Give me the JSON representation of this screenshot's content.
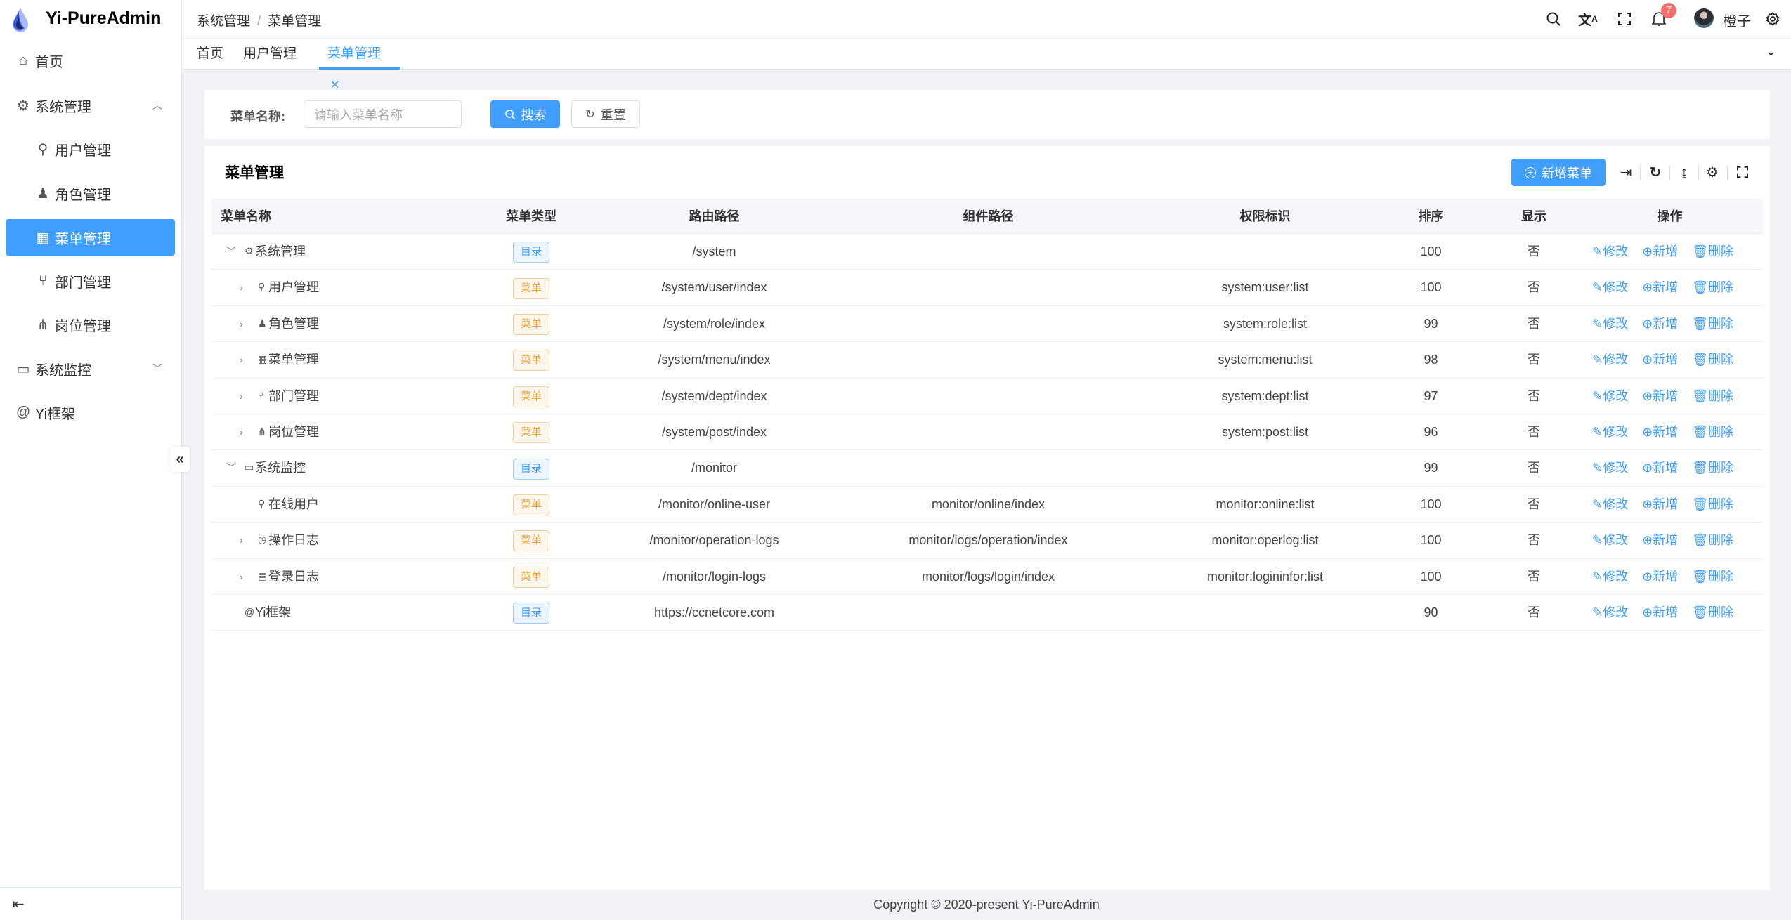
{
  "app": {
    "title": "Yi-PureAdmin",
    "brand_color": "#409eff"
  },
  "sidebar": {
    "items": [
      {
        "label": "首页",
        "icon": "home-icon",
        "level": 0
      },
      {
        "label": "系统管理",
        "icon": "gear-icon",
        "level": 0,
        "expanded": true
      },
      {
        "label": "用户管理",
        "icon": "user-icon",
        "level": 1
      },
      {
        "label": "角色管理",
        "icon": "role-icon",
        "level": 1
      },
      {
        "label": "菜单管理",
        "icon": "grid-icon",
        "level": 1,
        "active": true
      },
      {
        "label": "部门管理",
        "icon": "branch-icon",
        "level": 1
      },
      {
        "label": "岗位管理",
        "icon": "network-icon",
        "level": 1
      },
      {
        "label": "系统监控",
        "icon": "monitor-icon",
        "level": 0,
        "expanded": false
      },
      {
        "label": "Yi框架",
        "icon": "at-icon",
        "level": 0
      }
    ]
  },
  "header": {
    "breadcrumb": [
      "系统管理",
      "菜单管理"
    ],
    "notification_count": "7",
    "username": "橙子"
  },
  "tabs": [
    {
      "label": "首页"
    },
    {
      "label": "用户管理"
    },
    {
      "label": "菜单管理",
      "active": true
    }
  ],
  "search": {
    "label": "菜单名称:",
    "placeholder": "请输入菜单名称",
    "search_label": "搜索",
    "reset_label": "重置"
  },
  "table": {
    "title": "菜单管理",
    "add_label": "新增菜单",
    "columns": [
      "菜单名称",
      "菜单类型",
      "路由路径",
      "组件路径",
      "权限标识",
      "排序",
      "显示",
      "操作"
    ],
    "actions": {
      "edit": "修改",
      "add": "新增",
      "delete": "删除"
    },
    "rows": [
      {
        "name": "系统管理",
        "icon": "gear-icon",
        "level": 0,
        "expand": "down",
        "type": "目录",
        "kind": "dir",
        "route": "/system",
        "component": "",
        "perm": "",
        "sort": "100",
        "show": "否"
      },
      {
        "name": "用户管理",
        "icon": "user-icon",
        "level": 1,
        "expand": "right",
        "type": "菜单",
        "kind": "menu",
        "route": "/system/user/index",
        "component": "",
        "perm": "system:user:list",
        "sort": "100",
        "show": "否"
      },
      {
        "name": "角色管理",
        "icon": "role-icon",
        "level": 1,
        "expand": "right",
        "type": "菜单",
        "kind": "menu",
        "route": "/system/role/index",
        "component": "",
        "perm": "system:role:list",
        "sort": "99",
        "show": "否"
      },
      {
        "name": "菜单管理",
        "icon": "grid-icon",
        "level": 1,
        "expand": "right",
        "type": "菜单",
        "kind": "menu",
        "route": "/system/menu/index",
        "component": "",
        "perm": "system:menu:list",
        "sort": "98",
        "show": "否"
      },
      {
        "name": "部门管理",
        "icon": "branch-icon",
        "level": 1,
        "expand": "right",
        "type": "菜单",
        "kind": "menu",
        "route": "/system/dept/index",
        "component": "",
        "perm": "system:dept:list",
        "sort": "97",
        "show": "否"
      },
      {
        "name": "岗位管理",
        "icon": "network-icon",
        "level": 1,
        "expand": "right",
        "type": "菜单",
        "kind": "menu",
        "route": "/system/post/index",
        "component": "",
        "perm": "system:post:list",
        "sort": "96",
        "show": "否"
      },
      {
        "name": "系统监控",
        "icon": "monitor-icon",
        "level": 0,
        "expand": "down",
        "type": "目录",
        "kind": "dir",
        "route": "/monitor",
        "component": "",
        "perm": "",
        "sort": "99",
        "show": "否"
      },
      {
        "name": "在线用户",
        "icon": "online-user-icon",
        "level": 1,
        "expand": "",
        "type": "菜单",
        "kind": "menu",
        "route": "/monitor/online-user",
        "component": "monitor/online/index",
        "perm": "monitor:online:list",
        "sort": "100",
        "show": "否"
      },
      {
        "name": "操作日志",
        "icon": "history-icon",
        "level": 1,
        "expand": "right",
        "type": "菜单",
        "kind": "menu",
        "route": "/monitor/operation-logs",
        "component": "monitor/logs/operation/index",
        "perm": "monitor:operlog:list",
        "sort": "100",
        "show": "否"
      },
      {
        "name": "登录日志",
        "icon": "window-icon",
        "level": 1,
        "expand": "right",
        "type": "菜单",
        "kind": "menu",
        "route": "/monitor/login-logs",
        "component": "monitor/logs/login/index",
        "perm": "monitor:logininfor:list",
        "sort": "100",
        "show": "否"
      },
      {
        "name": "Yi框架",
        "icon": "at-icon",
        "level": 0,
        "expand": "",
        "type": "目录",
        "kind": "dir",
        "route": "https://ccnetcore.com",
        "component": "",
        "perm": "",
        "sort": "90",
        "show": "否"
      }
    ]
  },
  "footer": {
    "text": "Copyright © 2020-present Yi-PureAdmin"
  }
}
